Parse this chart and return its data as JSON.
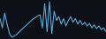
{
  "line_color": "#5ba8d8",
  "background_color": "#0d1117",
  "linewidth": 0.8,
  "y": [
    55,
    30,
    70,
    40,
    15,
    5,
    8,
    12,
    18,
    24,
    30,
    36,
    42,
    48,
    54,
    58,
    62,
    65,
    30,
    95,
    20,
    100,
    15,
    75,
    50,
    60,
    40,
    55,
    35,
    50,
    60,
    45,
    55,
    40,
    50,
    38,
    45,
    35,
    42,
    30,
    38,
    28,
    35,
    25,
    30,
    20
  ],
  "ylim_min": 0,
  "ylim_max": 105
}
